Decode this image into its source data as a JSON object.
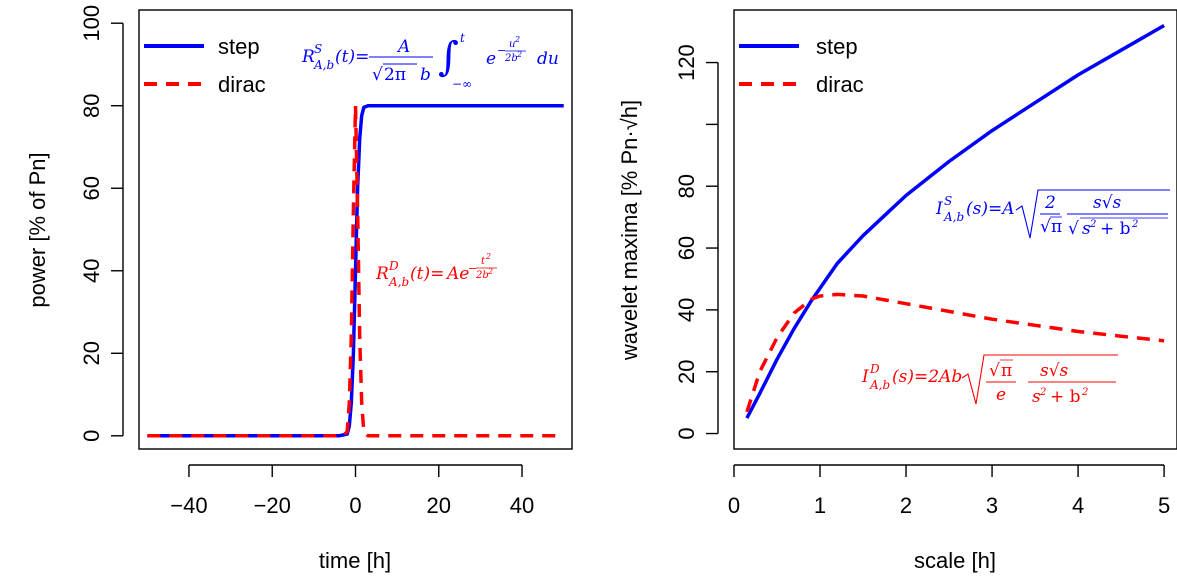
{
  "chart_data": [
    {
      "type": "line",
      "xlabel": "time [h]",
      "ylabel": "power [% of Pn]",
      "xlim": [
        -52,
        52
      ],
      "ylim": [
        -3.2,
        103.2
      ],
      "xticks": [
        -40,
        -20,
        0,
        20,
        40
      ],
      "xtick_labels": [
        "−40",
        "−20",
        "0",
        "20",
        "40"
      ],
      "yticks": [
        0,
        20,
        40,
        60,
        80,
        100
      ],
      "ytick_labels": [
        "0",
        "20",
        "40",
        "60",
        "80",
        "100"
      ],
      "legend_position": "top-left",
      "legend": [
        {
          "label": "step",
          "color": "#0000ff",
          "dash": "solid"
        },
        {
          "label": "dirac",
          "color": "#ff0000",
          "dash": "dashed"
        }
      ],
      "series": [
        {
          "name": "step",
          "color": "#0000ff",
          "dash": "solid",
          "x": [
            -50,
            -4,
            -2,
            -1.5,
            -1,
            -0.5,
            0,
            0.5,
            1,
            1.5,
            2,
            3,
            50
          ],
          "y": [
            0,
            0,
            0.4,
            2.4,
            8,
            20,
            40,
            60,
            72,
            77.6,
            79.6,
            80,
            80
          ]
        },
        {
          "name": "dirac",
          "color": "#ff0000",
          "dash": "dashed",
          "x": [
            -50,
            -3,
            -2,
            -1.5,
            -1,
            -0.5,
            0,
            0.5,
            1,
            1.5,
            2,
            3,
            50
          ],
          "y": [
            0,
            0,
            1,
            8,
            24,
            55,
            80,
            55,
            24,
            8,
            1,
            0,
            0
          ]
        }
      ],
      "annotations": [
        {
          "text": "R^S_{A,b}(t)=A/(√(2π)b) ∫_{−∞}^{t} e^{−u²/2b²} du",
          "color": "#0000ff"
        },
        {
          "text": "R^D_{A,b}(t)=Ae^{−t²/2b²}",
          "color": "#ff0000"
        }
      ]
    },
    {
      "type": "line",
      "xlabel": "scale [h]",
      "ylabel": "wavelet maxima [% Pn·√h]",
      "xlim": [
        0.0,
        5.15
      ],
      "ylim": [
        -5,
        137
      ],
      "xticks": [
        0,
        1,
        2,
        3,
        4,
        5
      ],
      "xtick_labels": [
        "0",
        "1",
        "2",
        "3",
        "4",
        "5"
      ],
      "yticks": [
        0,
        20,
        40,
        60,
        80,
        100,
        120
      ],
      "ytick_labels": [
        "0",
        "20",
        "40",
        "60",
        "80",
        "",
        "120"
      ],
      "legend_position": "top-left",
      "legend": [
        {
          "label": "step",
          "color": "#0000ff",
          "dash": "solid"
        },
        {
          "label": "dirac",
          "color": "#ff0000",
          "dash": "dashed"
        }
      ],
      "series": [
        {
          "name": "step",
          "color": "#0000ff",
          "dash": "solid",
          "x": [
            0.15,
            0.3,
            0.5,
            0.7,
            0.9,
            1.0,
            1.2,
            1.5,
            2.0,
            2.5,
            3.0,
            3.5,
            4.0,
            4.5,
            5.0
          ],
          "y": [
            5,
            13,
            24,
            34,
            43,
            47,
            55,
            64,
            77,
            88,
            98,
            107,
            116,
            124,
            132
          ]
        },
        {
          "name": "dirac",
          "color": "#ff0000",
          "dash": "dashed",
          "x": [
            0.15,
            0.3,
            0.5,
            0.7,
            0.9,
            1.0,
            1.2,
            1.5,
            2.0,
            2.5,
            3.0,
            3.5,
            4.0,
            4.5,
            5.0
          ],
          "y": [
            7,
            20,
            31,
            39,
            43.5,
            44.5,
            45,
            44.5,
            42,
            39.5,
            37,
            35,
            33,
            31.5,
            30
          ]
        }
      ],
      "annotations": [
        {
          "text": "I^S_{A,b}(s)=A √(2/√π · s√s/√(s²+b²))",
          "color": "#0000ff"
        },
        {
          "text": "I^D_{A,b}(s)=2Ab √(√π/e · s√s/(s²+b²))",
          "color": "#ff0000"
        }
      ]
    }
  ]
}
